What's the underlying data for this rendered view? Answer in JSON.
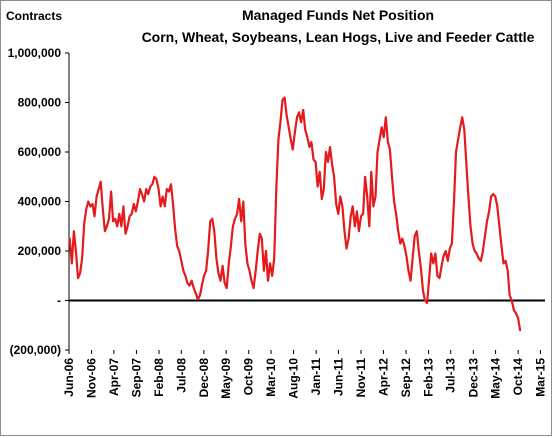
{
  "chart_data": {
    "type": "line",
    "title": "Managed Funds Net Position",
    "subtitle": "Corn, Wheat, Soybeans, Lean Hogs, Live and Feeder Cattle",
    "ylabel": "Contracts",
    "xlabel": "",
    "ylim": [
      -200000,
      1000000
    ],
    "yticks": [
      {
        "value": -200000,
        "label": "(200,000)"
      },
      {
        "value": 0,
        "label": "-"
      },
      {
        "value": 200000,
        "label": "200,000"
      },
      {
        "value": 400000,
        "label": "400,000"
      },
      {
        "value": 600000,
        "label": "600,000"
      },
      {
        "value": 800000,
        "label": "800,000"
      },
      {
        "value": 1000000,
        "label": "1,000,000"
      }
    ],
    "xlim": [
      "2006-06",
      "2015-04"
    ],
    "xticks": [
      {
        "date": "2006-06",
        "label": "Jun-06"
      },
      {
        "date": "2006-11",
        "label": "Nov-06"
      },
      {
        "date": "2007-04",
        "label": "Apr-07"
      },
      {
        "date": "2007-09",
        "label": "Sep-07"
      },
      {
        "date": "2008-02",
        "label": "Feb-08"
      },
      {
        "date": "2008-07",
        "label": "Jul-08"
      },
      {
        "date": "2008-12",
        "label": "Dec-08"
      },
      {
        "date": "2009-05",
        "label": "May-09"
      },
      {
        "date": "2009-10",
        "label": "Oct-09"
      },
      {
        "date": "2010-03",
        "label": "Mar-10"
      },
      {
        "date": "2010-08",
        "label": "Aug-10"
      },
      {
        "date": "2011-01",
        "label": "Jan-11"
      },
      {
        "date": "2011-06",
        "label": "Jun-11"
      },
      {
        "date": "2011-11",
        "label": "Nov-11"
      },
      {
        "date": "2012-04",
        "label": "Apr-12"
      },
      {
        "date": "2012-09",
        "label": "Sep-12"
      },
      {
        "date": "2013-02",
        "label": "Feb-13"
      },
      {
        "date": "2013-07",
        "label": "Jul-13"
      },
      {
        "date": "2013-12",
        "label": "Dec-13"
      },
      {
        "date": "2014-05",
        "label": "May-14"
      },
      {
        "date": "2014-10",
        "label": "Oct-14"
      },
      {
        "date": "2015-03",
        "label": "Mar-15"
      }
    ],
    "grid": false,
    "legend": "none",
    "series": [
      {
        "color": "#e41a1c",
        "points": [
          [
            "2006-06-06",
            250000
          ],
          [
            "2006-06-20",
            150000
          ],
          [
            "2006-07-04",
            280000
          ],
          [
            "2006-07-18",
            200000
          ],
          [
            "2006-08-01",
            90000
          ],
          [
            "2006-08-15",
            110000
          ],
          [
            "2006-08-29",
            170000
          ],
          [
            "2006-09-12",
            310000
          ],
          [
            "2006-09-26",
            370000
          ],
          [
            "2006-10-10",
            400000
          ],
          [
            "2006-10-24",
            380000
          ],
          [
            "2006-11-07",
            390000
          ],
          [
            "2006-11-21",
            340000
          ],
          [
            "2006-12-05",
            420000
          ],
          [
            "2006-12-19",
            450000
          ],
          [
            "2007-01-02",
            480000
          ],
          [
            "2007-01-16",
            370000
          ],
          [
            "2007-01-30",
            280000
          ],
          [
            "2007-02-13",
            300000
          ],
          [
            "2007-02-27",
            330000
          ],
          [
            "2007-03-13",
            440000
          ],
          [
            "2007-03-27",
            320000
          ],
          [
            "2007-04-10",
            330000
          ],
          [
            "2007-04-24",
            300000
          ],
          [
            "2007-05-08",
            350000
          ],
          [
            "2007-05-22",
            300000
          ],
          [
            "2007-06-05",
            380000
          ],
          [
            "2007-06-19",
            270000
          ],
          [
            "2007-07-03",
            300000
          ],
          [
            "2007-07-17",
            340000
          ],
          [
            "2007-07-31",
            350000
          ],
          [
            "2007-08-14",
            390000
          ],
          [
            "2007-08-28",
            360000
          ],
          [
            "2007-09-11",
            400000
          ],
          [
            "2007-09-25",
            450000
          ],
          [
            "2007-10-09",
            430000
          ],
          [
            "2007-10-23",
            400000
          ],
          [
            "2007-11-06",
            450000
          ],
          [
            "2007-11-20",
            430000
          ],
          [
            "2007-12-04",
            460000
          ],
          [
            "2007-12-18",
            470000
          ],
          [
            "2008-01-01",
            500000
          ],
          [
            "2008-01-15",
            490000
          ],
          [
            "2008-01-29",
            450000
          ],
          [
            "2008-02-12",
            380000
          ],
          [
            "2008-02-26",
            420000
          ],
          [
            "2008-03-11",
            380000
          ],
          [
            "2008-03-25",
            450000
          ],
          [
            "2008-04-08",
            440000
          ],
          [
            "2008-04-22",
            470000
          ],
          [
            "2008-05-06",
            390000
          ],
          [
            "2008-05-20",
            290000
          ],
          [
            "2008-06-03",
            220000
          ],
          [
            "2008-06-17",
            200000
          ],
          [
            "2008-07-01",
            160000
          ],
          [
            "2008-07-15",
            120000
          ],
          [
            "2008-07-29",
            100000
          ],
          [
            "2008-08-12",
            70000
          ],
          [
            "2008-08-26",
            60000
          ],
          [
            "2008-09-09",
            80000
          ],
          [
            "2008-09-23",
            50000
          ],
          [
            "2008-10-07",
            30000
          ],
          [
            "2008-10-21",
            5000
          ],
          [
            "2008-11-04",
            20000
          ],
          [
            "2008-11-18",
            60000
          ],
          [
            "2008-12-02",
            100000
          ],
          [
            "2008-12-16",
            120000
          ],
          [
            "2008-12-30",
            200000
          ],
          [
            "2009-01-13",
            320000
          ],
          [
            "2009-01-27",
            330000
          ],
          [
            "2009-02-10",
            280000
          ],
          [
            "2009-02-24",
            170000
          ],
          [
            "2009-03-10",
            110000
          ],
          [
            "2009-03-24",
            80000
          ],
          [
            "2009-04-07",
            140000
          ],
          [
            "2009-04-21",
            70000
          ],
          [
            "2009-05-05",
            50000
          ],
          [
            "2009-05-19",
            150000
          ],
          [
            "2009-06-02",
            220000
          ],
          [
            "2009-06-16",
            300000
          ],
          [
            "2009-06-30",
            330000
          ],
          [
            "2009-07-14",
            350000
          ],
          [
            "2009-07-28",
            410000
          ],
          [
            "2009-08-11",
            320000
          ],
          [
            "2009-08-25",
            400000
          ],
          [
            "2009-09-08",
            230000
          ],
          [
            "2009-09-22",
            150000
          ],
          [
            "2009-10-06",
            120000
          ],
          [
            "2009-10-20",
            80000
          ],
          [
            "2009-11-03",
            50000
          ],
          [
            "2009-11-17",
            120000
          ],
          [
            "2009-12-01",
            200000
          ],
          [
            "2009-12-15",
            270000
          ],
          [
            "2009-12-29",
            250000
          ],
          [
            "2010-01-12",
            120000
          ],
          [
            "2010-01-26",
            200000
          ],
          [
            "2010-02-09",
            80000
          ],
          [
            "2010-02-23",
            150000
          ],
          [
            "2010-03-09",
            100000
          ],
          [
            "2010-03-23",
            170000
          ],
          [
            "2010-04-06",
            450000
          ],
          [
            "2010-04-20",
            650000
          ],
          [
            "2010-05-04",
            720000
          ],
          [
            "2010-05-18",
            810000
          ],
          [
            "2010-06-01",
            820000
          ],
          [
            "2010-06-15",
            750000
          ],
          [
            "2010-06-29",
            700000
          ],
          [
            "2010-07-13",
            650000
          ],
          [
            "2010-07-27",
            610000
          ],
          [
            "2010-08-10",
            680000
          ],
          [
            "2010-08-24",
            740000
          ],
          [
            "2010-09-07",
            760000
          ],
          [
            "2010-09-21",
            720000
          ],
          [
            "2010-10-05",
            770000
          ],
          [
            "2010-10-19",
            690000
          ],
          [
            "2010-11-02",
            660000
          ],
          [
            "2010-11-16",
            620000
          ],
          [
            "2010-11-30",
            640000
          ],
          [
            "2010-12-14",
            570000
          ],
          [
            "2010-12-28",
            560000
          ],
          [
            "2011-01-11",
            460000
          ],
          [
            "2011-01-25",
            520000
          ],
          [
            "2011-02-08",
            410000
          ],
          [
            "2011-02-22",
            450000
          ],
          [
            "2011-03-08",
            600000
          ],
          [
            "2011-03-22",
            560000
          ],
          [
            "2011-04-05",
            620000
          ],
          [
            "2011-04-19",
            550000
          ],
          [
            "2011-05-03",
            500000
          ],
          [
            "2011-05-17",
            390000
          ],
          [
            "2011-05-31",
            350000
          ],
          [
            "2011-06-14",
            420000
          ],
          [
            "2011-06-28",
            380000
          ],
          [
            "2011-07-12",
            280000
          ],
          [
            "2011-07-26",
            210000
          ],
          [
            "2011-08-09",
            250000
          ],
          [
            "2011-08-23",
            340000
          ],
          [
            "2011-09-06",
            380000
          ],
          [
            "2011-09-20",
            300000
          ],
          [
            "2011-10-04",
            360000
          ],
          [
            "2011-10-18",
            280000
          ],
          [
            "2011-11-01",
            340000
          ],
          [
            "2011-11-15",
            350000
          ],
          [
            "2011-11-29",
            500000
          ],
          [
            "2011-12-13",
            420000
          ],
          [
            "2011-12-27",
            300000
          ],
          [
            "2012-01-10",
            520000
          ],
          [
            "2012-01-24",
            380000
          ],
          [
            "2012-02-07",
            420000
          ],
          [
            "2012-02-21",
            600000
          ],
          [
            "2012-03-06",
            650000
          ],
          [
            "2012-03-20",
            700000
          ],
          [
            "2012-04-03",
            660000
          ],
          [
            "2012-04-17",
            740000
          ],
          [
            "2012-05-01",
            640000
          ],
          [
            "2012-05-15",
            610000
          ],
          [
            "2012-05-29",
            500000
          ],
          [
            "2012-06-12",
            400000
          ],
          [
            "2012-06-26",
            350000
          ],
          [
            "2012-07-10",
            280000
          ],
          [
            "2012-07-24",
            230000
          ],
          [
            "2012-08-07",
            250000
          ],
          [
            "2012-08-21",
            220000
          ],
          [
            "2012-09-04",
            180000
          ],
          [
            "2012-09-18",
            120000
          ],
          [
            "2012-10-02",
            80000
          ],
          [
            "2012-10-16",
            170000
          ],
          [
            "2012-10-30",
            260000
          ],
          [
            "2012-11-13",
            280000
          ],
          [
            "2012-11-27",
            200000
          ],
          [
            "2012-12-11",
            130000
          ],
          [
            "2012-12-25",
            40000
          ],
          [
            "2013-01-08",
            0
          ],
          [
            "2013-01-22",
            -10000
          ],
          [
            "2013-02-05",
            90000
          ],
          [
            "2013-02-19",
            190000
          ],
          [
            "2013-03-05",
            150000
          ],
          [
            "2013-03-19",
            190000
          ],
          [
            "2013-04-02",
            100000
          ],
          [
            "2013-04-16",
            90000
          ],
          [
            "2013-04-30",
            140000
          ],
          [
            "2013-05-14",
            180000
          ],
          [
            "2013-05-28",
            200000
          ],
          [
            "2013-06-11",
            160000
          ],
          [
            "2013-06-25",
            210000
          ],
          [
            "2013-07-09",
            230000
          ],
          [
            "2013-07-23",
            400000
          ],
          [
            "2013-08-06",
            600000
          ],
          [
            "2013-08-20",
            650000
          ],
          [
            "2013-09-03",
            700000
          ],
          [
            "2013-09-17",
            740000
          ],
          [
            "2013-10-01",
            690000
          ],
          [
            "2013-10-15",
            550000
          ],
          [
            "2013-10-29",
            420000
          ],
          [
            "2013-11-12",
            300000
          ],
          [
            "2013-11-26",
            230000
          ],
          [
            "2013-12-10",
            200000
          ],
          [
            "2013-12-24",
            190000
          ],
          [
            "2014-01-07",
            170000
          ],
          [
            "2014-01-21",
            160000
          ],
          [
            "2014-02-04",
            200000
          ],
          [
            "2014-02-18",
            260000
          ],
          [
            "2014-03-04",
            320000
          ],
          [
            "2014-03-18",
            360000
          ],
          [
            "2014-04-01",
            420000
          ],
          [
            "2014-04-15",
            430000
          ],
          [
            "2014-04-29",
            420000
          ],
          [
            "2014-05-13",
            380000
          ],
          [
            "2014-05-27",
            300000
          ],
          [
            "2014-06-10",
            220000
          ],
          [
            "2014-06-24",
            150000
          ],
          [
            "2014-07-08",
            160000
          ],
          [
            "2014-07-22",
            120000
          ],
          [
            "2014-08-05",
            20000
          ],
          [
            "2014-08-19",
            0
          ],
          [
            "2014-09-02",
            -40000
          ],
          [
            "2014-09-16",
            -50000
          ],
          [
            "2014-09-30",
            -70000
          ],
          [
            "2014-10-14",
            -120000
          ]
        ]
      }
    ]
  }
}
